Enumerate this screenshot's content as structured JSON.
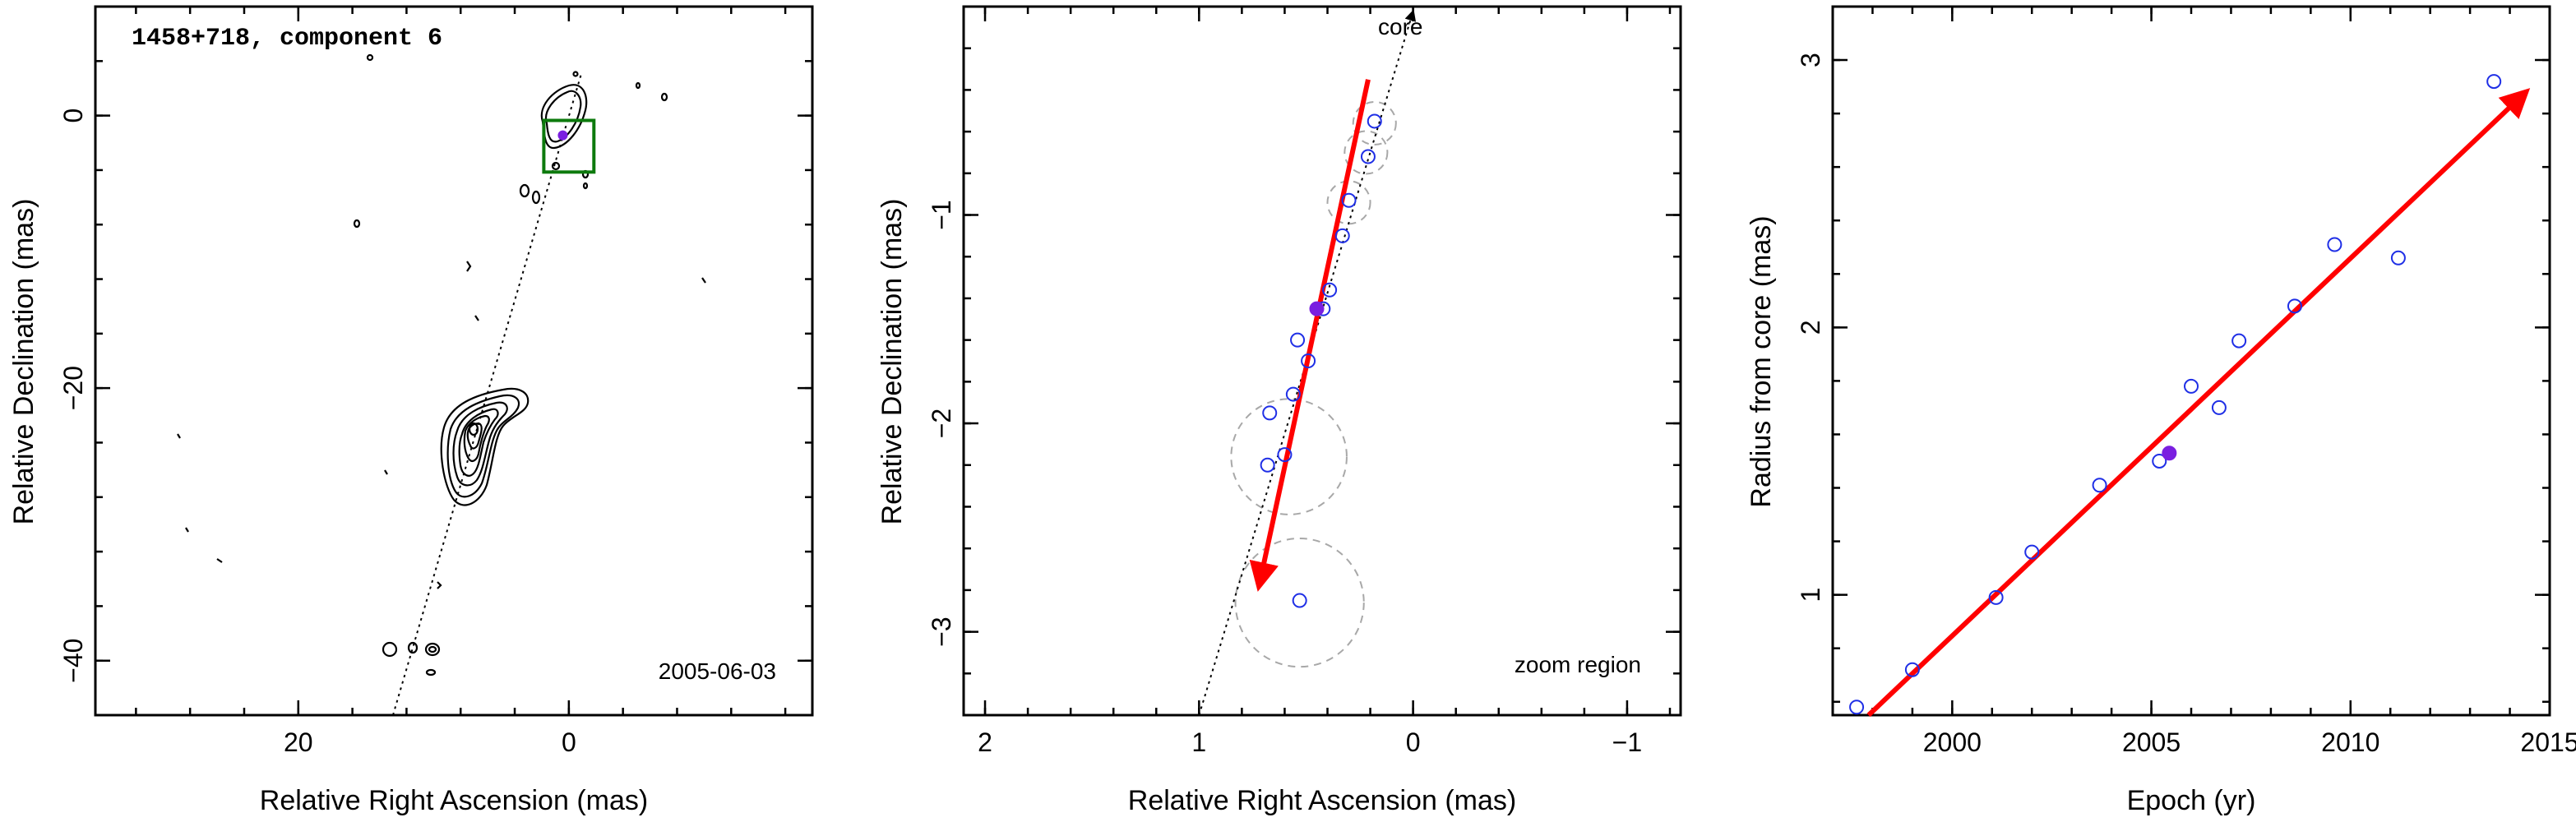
{
  "colors": {
    "fit_arrow": "#ff0000",
    "points_open": "#1f2fe6",
    "point_current": "#7a1fe0",
    "zoom_box": "#0d7a0d",
    "error_circles": "#a8a8a8"
  },
  "chart_data": [
    {
      "type": "contour-map",
      "title": "1458+718, component 6",
      "date_label": "2005-06-03",
      "xlabel": "Relative Right Ascension (mas)",
      "ylabel": "Relative Declination (mas)",
      "xlim": [
        35,
        -18
      ],
      "ylim": [
        -44,
        8
      ],
      "xticks": [
        20,
        0
      ],
      "yticks": [
        0,
        -20,
        -40
      ],
      "core": {
        "x": 0,
        "y": 0
      },
      "component_position": {
        "x": 0.45,
        "y": -1.45
      },
      "zoom_box": {
        "x": [
          1.0,
          -1.0
        ],
        "y": [
          -1.2,
          -3.3
        ]
      },
      "jet_direction_line": {
        "x": [
          13,
          -0.9
        ],
        "y": [
          -44,
          3
        ]
      },
      "extended_emission_center": {
        "x": 7,
        "y": -24
      }
    },
    {
      "type": "scatter",
      "annotation_core": "core",
      "annotation_region": "zoom region",
      "xlabel": "Relative Right Ascension (mas)",
      "ylabel": "Relative Declination (mas)",
      "xlim": [
        2.1,
        -1.25
      ],
      "ylim": [
        -3.4,
        0
      ],
      "xticks": [
        2,
        1,
        0,
        -1
      ],
      "yticks": [
        -1,
        -2,
        -3
      ],
      "points": [
        {
          "x": 0.18,
          "y": -0.55
        },
        {
          "x": 0.21,
          "y": -0.72
        },
        {
          "x": 0.3,
          "y": -0.93
        },
        {
          "x": 0.33,
          "y": -1.1
        },
        {
          "x": 0.39,
          "y": -1.36
        },
        {
          "x": 0.42,
          "y": -1.45
        },
        {
          "x": 0.54,
          "y": -1.6
        },
        {
          "x": 0.49,
          "y": -1.7
        },
        {
          "x": 0.56,
          "y": -1.86
        },
        {
          "x": 0.67,
          "y": -1.95
        },
        {
          "x": 0.6,
          "y": -2.15
        },
        {
          "x": 0.68,
          "y": -2.2
        },
        {
          "x": 0.53,
          "y": -2.85
        }
      ],
      "current_point": {
        "x": 0.45,
        "y": -1.45
      },
      "error_circles": [
        {
          "x": 0.18,
          "y": -0.56,
          "r": 0.1
        },
        {
          "x": 0.22,
          "y": -0.7,
          "r": 0.1
        },
        {
          "x": 0.3,
          "y": -0.94,
          "r": 0.1
        },
        {
          "x": 0.58,
          "y": -2.16,
          "r": 0.27
        },
        {
          "x": 0.53,
          "y": -2.86,
          "r": 0.3
        }
      ],
      "fit_arrow": {
        "x": [
          0.21,
          0.72
        ],
        "y": [
          -0.35,
          -2.78
        ]
      },
      "jet_direction_line": {
        "x": [
          1.0,
          0.0
        ],
        "y": [
          -3.4,
          0
        ]
      }
    },
    {
      "type": "scatter",
      "xlabel": "Epoch (yr)",
      "ylabel": "Radius from core (mas)",
      "xlim": [
        1997,
        2015
      ],
      "ylim": [
        0.55,
        3.2
      ],
      "xticks": [
        2000,
        2005,
        2010,
        2015
      ],
      "yticks": [
        1,
        2,
        3
      ],
      "x": [
        1997.6,
        1999.0,
        2001.1,
        2002.0,
        2003.7,
        2005.2,
        2006.0,
        2006.7,
        2007.2,
        2008.6,
        2009.6,
        2011.2,
        2013.6
      ],
      "y": [
        0.58,
        0.72,
        0.99,
        1.16,
        1.41,
        1.5,
        1.78,
        1.7,
        1.95,
        2.08,
        2.31,
        2.26,
        2.92
      ],
      "current_point": {
        "x": 2005.45,
        "y": 1.53
      },
      "fit_arrow": {
        "x": [
          1997.9,
          2014.4
        ],
        "y": [
          0.55,
          2.88
        ]
      }
    }
  ]
}
